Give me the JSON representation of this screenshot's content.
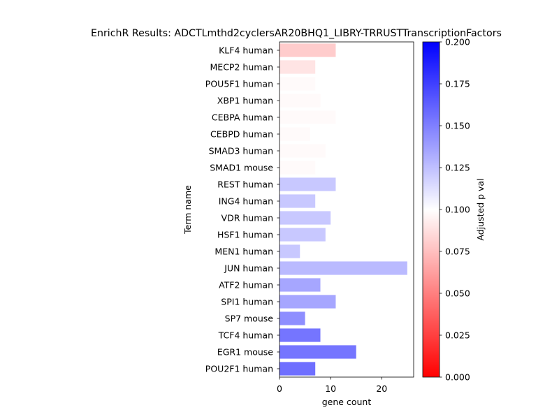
{
  "chart_data": {
    "type": "bar",
    "orientation": "horizontal",
    "title": "EnrichR Results: ADCTLmthd2cyclersAR20BHQ1_LIBRY-TRRUSTTranscriptionFactors",
    "xlabel": "gene count",
    "ylabel": "Term name",
    "xlim": [
      0,
      26.25
    ],
    "xticks": [
      0,
      10,
      20
    ],
    "categories": [
      "KLF4 human",
      "MECP2 human",
      "POU5F1 human",
      "XBP1 human",
      "CEBPA human",
      "CEBPD human",
      "SMAD3 human",
      "SMAD1 mouse",
      "REST human",
      "ING4 human",
      "VDR human",
      "HSF1 human",
      "MEN1 human",
      "JUN human",
      "ATF2 human",
      "SPI1 human",
      "SP7 mouse",
      "TCF4 human",
      "EGR1 mouse",
      "POU2F1 human"
    ],
    "series": [
      {
        "values": [
          11,
          7,
          7,
          8,
          11,
          6,
          9,
          7,
          11,
          7,
          10,
          9,
          4,
          25,
          8,
          11,
          5,
          8,
          15,
          7
        ],
        "adjusted_p": [
          0.0746,
          0.0864,
          0.0974,
          0.0974,
          0.0974,
          0.0974,
          0.0974,
          0.0974,
          0.1278,
          0.1278,
          0.1278,
          0.1278,
          0.1278,
          0.1346,
          0.1447,
          0.1447,
          0.1569,
          0.1695,
          0.1695,
          0.1721
        ]
      }
    ],
    "colorbar": {
      "label": "Adjusted p val",
      "min": 0,
      "max": 0.2,
      "ticks": [
        "0.000",
        "0.025",
        "0.050",
        "0.075",
        "0.100",
        "0.125",
        "0.150",
        "0.175",
        "0.200"
      ],
      "colormap": "bwr_r",
      "colors": {
        "low": "#ff0000",
        "mid": "#ffffff",
        "high": "#0000ff"
      }
    },
    "grid": false,
    "legend": "colorbar-right"
  }
}
